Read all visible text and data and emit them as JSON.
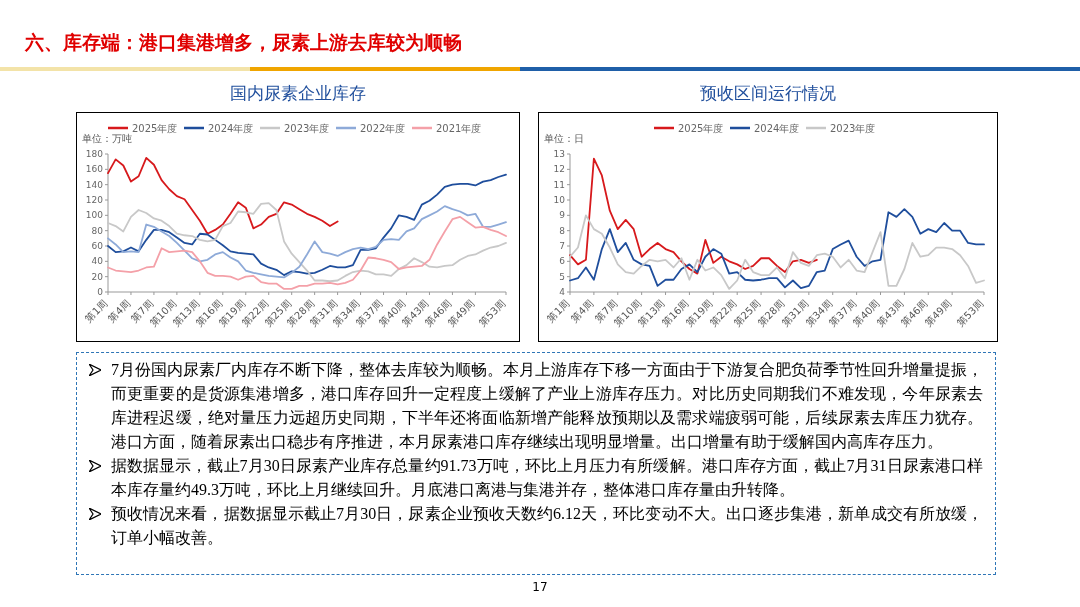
{
  "chart_data": [
    {
      "type": "other",
      "title": "六、库存端：港口集港增多，尿素上游去库较为顺畅",
      "annotations": [
        "17"
      ]
    },
    {
      "type": "line",
      "title": "国内尿素企业库存",
      "ylabel": "单位：万吨",
      "legend": "top",
      "ylim": [
        0,
        180
      ],
      "yticks": [
        0,
        20,
        40,
        60,
        80,
        100,
        120,
        140,
        160,
        180
      ],
      "categories": [
        "第1周",
        null,
        null,
        "第4周",
        null,
        null,
        "第7周",
        null,
        null,
        "第10周",
        null,
        null,
        "第13周",
        null,
        null,
        "第16周",
        null,
        null,
        "第19周",
        null,
        null,
        "第22周",
        null,
        null,
        "第25周",
        null,
        null,
        "第28周",
        null,
        null,
        "第31周",
        null,
        null,
        "第34周",
        null,
        null,
        "第37周",
        null,
        null,
        "第40周",
        null,
        null,
        "第43周",
        null,
        null,
        "第46周",
        null,
        null,
        "第49周",
        null,
        null,
        null,
        "第53周"
      ],
      "series": [
        {
          "name": "2025年度",
          "color": "#d7191c",
          "values": [
            155,
            173,
            165,
            144,
            151,
            175,
            166,
            146,
            134,
            125,
            121,
            107,
            93,
            76,
            81,
            88,
            102,
            117,
            110,
            83,
            88,
            98,
            102,
            117,
            114,
            108,
            102,
            98,
            93,
            86,
            92,
            null,
            null,
            null,
            null,
            null,
            null,
            null,
            null,
            null,
            null,
            null,
            null,
            null,
            null,
            null,
            null,
            null,
            null,
            null,
            null,
            null,
            null
          ]
        },
        {
          "name": "2024年度",
          "color": "#1f4e9c",
          "values": [
            60,
            52,
            53,
            58,
            53,
            68,
            81,
            81,
            78,
            71,
            64,
            62,
            76,
            75,
            68,
            61,
            53,
            51,
            50,
            49,
            37,
            32,
            29,
            22,
            27,
            26,
            24,
            25,
            29,
            34,
            32,
            32,
            35,
            55,
            55,
            57,
            71,
            83,
            100,
            98,
            94,
            114,
            119,
            127,
            137,
            140,
            141,
            141,
            139,
            144,
            146,
            150,
            153
          ]
        },
        {
          "name": "2023年度",
          "color": "#c8c8c8",
          "values": [
            90,
            86,
            79,
            98,
            107,
            103,
            96,
            93,
            86,
            76,
            74,
            73,
            68,
            66,
            68,
            86,
            90,
            105,
            104,
            102,
            115,
            116,
            107,
            66,
            50,
            39,
            28,
            15,
            15,
            14,
            15,
            21,
            26,
            28,
            27,
            23,
            23,
            21,
            30,
            35,
            44,
            39,
            33,
            32,
            34,
            35,
            42,
            47,
            49,
            54,
            58,
            60,
            64
          ]
        },
        {
          "name": "2022年度",
          "color": "#8eaad8",
          "values": [
            70,
            62,
            52,
            53,
            52,
            88,
            85,
            79,
            73,
            64,
            54,
            44,
            40,
            42,
            49,
            52,
            45,
            40,
            28,
            25,
            23,
            21,
            20,
            19,
            25,
            33,
            49,
            66,
            52,
            50,
            47,
            52,
            56,
            58,
            56,
            59,
            68,
            69,
            68,
            79,
            83,
            95,
            100,
            105,
            112,
            108,
            105,
            100,
            102,
            85,
            85,
            88,
            91
          ]
        },
        {
          "name": "2021年度",
          "color": "#f4a0a8",
          "values": [
            32,
            28,
            27,
            26,
            28,
            32,
            33,
            57,
            52,
            53,
            54,
            52,
            40,
            25,
            21,
            21,
            20,
            16,
            20,
            21,
            13,
            11,
            11,
            4,
            4,
            8,
            8,
            11,
            11,
            12,
            10,
            12,
            16,
            28,
            45,
            44,
            42,
            39,
            30,
            32,
            33,
            34,
            42,
            62,
            79,
            95,
            98,
            91,
            84,
            85,
            81,
            78,
            73
          ]
        }
      ]
    },
    {
      "type": "line",
      "title": "预收区间运行情况",
      "ylabel": "单位：日",
      "legend": "top",
      "ylim": [
        4,
        13
      ],
      "yticks": [
        4,
        5,
        6,
        7,
        8,
        9,
        10,
        11,
        12,
        13
      ],
      "categories": [
        "第1周",
        null,
        null,
        "第4周",
        null,
        null,
        "第7周",
        null,
        null,
        "第10周",
        null,
        null,
        "第13周",
        null,
        null,
        "第16周",
        null,
        null,
        "第19周",
        null,
        null,
        "第22周",
        null,
        null,
        "第25周",
        null,
        null,
        "第28周",
        null,
        null,
        "第31周",
        null,
        null,
        "第34周",
        null,
        null,
        "第37周",
        null,
        null,
        "第40周",
        null,
        null,
        "第43周",
        null,
        null,
        "第46周",
        null,
        null,
        "第49周",
        null,
        null,
        null,
        "第53周"
      ],
      "series": [
        {
          "name": "2025年度",
          "color": "#d7191c",
          "values": [
            6.4,
            5.8,
            6.1,
            12.7,
            11.6,
            9.3,
            8.1,
            8.7,
            8.1,
            6.3,
            6.8,
            7.2,
            6.8,
            6.6,
            6.0,
            5.5,
            5.2,
            7.4,
            5.9,
            6.3,
            6.0,
            5.8,
            5.5,
            5.7,
            6.2,
            6.2,
            5.7,
            5.3,
            6.0,
            6.1,
            5.9,
            6.1,
            null,
            null,
            null,
            null,
            null,
            null,
            null,
            null,
            null,
            null,
            null,
            null,
            null,
            null,
            null,
            null,
            null,
            null,
            null,
            null,
            null
          ]
        },
        {
          "name": "2024年度",
          "color": "#1f4e9c",
          "values": [
            4.75,
            4.9,
            5.6,
            4.8,
            6.8,
            8.1,
            6.6,
            7.2,
            6.1,
            5.8,
            5.7,
            4.4,
            4.8,
            4.8,
            5.5,
            5.8,
            5.3,
            6.3,
            6.8,
            6.5,
            5.2,
            5.3,
            4.8,
            4.75,
            4.8,
            4.9,
            4.9,
            4.3,
            4.75,
            4.25,
            4.4,
            5.3,
            5.4,
            6.8,
            7.1,
            7.35,
            6.3,
            5.7,
            6.0,
            6.1,
            9.2,
            8.9,
            9.4,
            8.9,
            7.8,
            8.1,
            7.9,
            8.5,
            8.0,
            8.0,
            7.2,
            7.1,
            7.1
          ]
        },
        {
          "name": "2023年度",
          "color": "#c8c8c8",
          "values": [
            6.3,
            6.9,
            9.0,
            8.1,
            7.8,
            6.9,
            5.8,
            5.3,
            5.2,
            5.7,
            6.1,
            6.0,
            6.1,
            5.6,
            6.2,
            4.8,
            6.1,
            5.4,
            5.6,
            5.1,
            4.2,
            4.75,
            6.1,
            5.3,
            5.1,
            5.1,
            5.6,
            4.9,
            6.6,
            5.9,
            5.7,
            6.4,
            6.5,
            6.3,
            5.6,
            6.1,
            5.4,
            5.3,
            6.6,
            7.9,
            4.4,
            4.4,
            5.5,
            7.2,
            6.3,
            6.4,
            6.9,
            6.9,
            6.8,
            6.4,
            5.7,
            4.6,
            4.75
          ]
        }
      ]
    },
    {
      "type": "other",
      "annotations": [
        "7月份国内尿素厂内库存不断下降，整体去库较为顺畅。本月上游库存下移一方面由于下游复合肥负荷季节性回升增量提振，而更重要的是货源集港增多，港口库存回升一定程度上缓解了产业上游库存压力。对比历史同期我们不难发现，今年尿素去库进程迟缓，绝对量压力远超历史同期，下半年还将面临新增产能释放预期以及需求端疲弱可能，后续尿素去库压力犹存。港口方面，随着尿素出口稳步有序推进，本月尿素港口库存继续出现明显增量。出口增量有助于缓解国内高库存压力。",
        "据数据显示，截止7月30日尿素产业库存总量约91.73万吨，环比上月压力有所缓解。港口库存方面，截止7月31日尿素港口样本库存量约49.3万吨，环比上月继续回升。月底港口离港与集港并存，整体港口库存量由升转降。",
        "预收情况来看，据数据显示截止7月30日，尿素企业预收天数约6.12天，环比变动不大。出口逐步集港，新单成交有所放缓，订单小幅改善。"
      ]
    }
  ]
}
